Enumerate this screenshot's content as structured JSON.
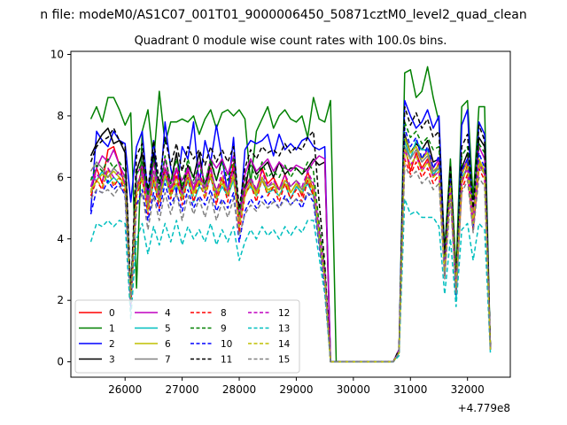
{
  "chart_data": {
    "type": "line",
    "suptitle": "n file: modeM0/AS1C07_001T01_9000006450_50871cztM0_level2_quad_clean",
    "title": "Quadrant 0 module wise count rates with 100.0s bins.",
    "xlabel": "",
    "ylabel": "",
    "x_offset_label": "+4.779e8",
    "xlim": [
      25050,
      32750
    ],
    "ylim": [
      -0.5,
      10.1
    ],
    "xticks": [
      26000,
      27000,
      28000,
      29000,
      30000,
      31000,
      32000
    ],
    "xtick_labels": [
      "26000",
      "27000",
      "28000",
      "29000",
      "30000",
      "31000",
      "32000"
    ],
    "yticks": [
      0,
      2,
      4,
      6,
      8,
      10
    ],
    "ytick_labels": [
      "0",
      "2",
      "4",
      "6",
      "8",
      "10"
    ],
    "grid": false,
    "legend_position": "lower-left",
    "legend_columns": 4,
    "x": [
      25400,
      25500,
      25600,
      25700,
      25800,
      25900,
      26000,
      26100,
      26200,
      26300,
      26400,
      26500,
      26600,
      26700,
      26800,
      26900,
      27000,
      27100,
      27200,
      27300,
      27400,
      27500,
      27600,
      27700,
      27800,
      27900,
      28000,
      28100,
      28200,
      28300,
      28400,
      28500,
      28600,
      28700,
      28800,
      28900,
      29000,
      29100,
      29200,
      29300,
      29400,
      29500,
      29600,
      29700,
      30700,
      30800,
      30900,
      31000,
      31100,
      31200,
      31300,
      31400,
      31500,
      31600,
      31700,
      31800,
      31900,
      32000,
      32100,
      32200,
      32300,
      32400
    ],
    "series": [
      {
        "name": "0",
        "color": "#ff0000",
        "dash": "solid",
        "values": [
          5.5,
          6.3,
          5.8,
          6.9,
          7.0,
          6.4,
          5.7,
          1.9,
          5.6,
          6.3,
          5.0,
          6.6,
          5.3,
          6.0,
          5.5,
          6.3,
          5.6,
          6.2,
          5.5,
          6.1,
          5.7,
          6.3,
          5.4,
          6.0,
          5.6,
          6.4,
          4.6,
          5.7,
          6.0,
          5.5,
          6.3,
          5.8,
          6.0,
          5.6,
          6.1,
          5.5,
          5.8,
          5.4,
          6.2,
          5.5,
          4.0,
          2.8,
          0.0,
          0.0,
          0.0,
          0.3,
          7.0,
          6.2,
          6.8,
          6.3,
          6.6,
          6.0,
          6.5,
          3.2,
          6.0,
          2.8,
          5.8,
          6.4,
          4.8,
          6.5,
          6.2,
          0.5
        ]
      },
      {
        "name": "1",
        "color": "#008000",
        "dash": "solid",
        "values": [
          7.9,
          8.3,
          7.8,
          8.6,
          8.6,
          8.2,
          7.7,
          8.1,
          2.4,
          7.5,
          8.2,
          6.5,
          8.8,
          7.1,
          7.8,
          7.8,
          7.9,
          7.8,
          8.0,
          7.4,
          7.9,
          8.2,
          7.6,
          8.1,
          8.2,
          8.0,
          8.2,
          7.9,
          5.8,
          7.5,
          7.9,
          8.3,
          7.6,
          8.0,
          8.2,
          7.9,
          7.8,
          8.0,
          7.3,
          8.6,
          7.9,
          7.8,
          8.5,
          0.0,
          0.0,
          0.3,
          9.4,
          9.5,
          8.6,
          8.8,
          9.6,
          8.6,
          7.8,
          3.6,
          6.6,
          2.9,
          8.3,
          8.5,
          5.3,
          8.3,
          8.3,
          0.4
        ]
      },
      {
        "name": "2",
        "color": "#0000ff",
        "dash": "solid",
        "values": [
          4.9,
          7.5,
          7.2,
          7.0,
          7.5,
          7.2,
          7.1,
          5.2,
          7.0,
          7.5,
          5.4,
          7.2,
          5.2,
          7.8,
          6.3,
          5.5,
          7.0,
          6.6,
          7.8,
          5.7,
          7.2,
          6.5,
          7.7,
          6.6,
          5.5,
          7.3,
          4.4,
          6.9,
          7.2,
          7.1,
          7.2,
          7.4,
          6.7,
          7.4,
          6.9,
          7.1,
          6.9,
          7.2,
          7.3,
          7.0,
          6.9,
          7.0,
          0.0,
          0.0,
          0.0,
          0.4,
          8.5,
          8.0,
          7.6,
          7.8,
          8.2,
          7.6,
          8.0,
          3.3,
          5.9,
          2.2,
          7.7,
          8.2,
          4.3,
          7.8,
          7.4,
          0.4
        ]
      },
      {
        "name": "3",
        "color": "#000000",
        "dash": "solid",
        "values": [
          6.7,
          7.1,
          7.4,
          7.6,
          7.1,
          7.2,
          6.8,
          2.0,
          6.2,
          6.8,
          5.1,
          6.8,
          5.4,
          6.3,
          5.8,
          6.8,
          5.5,
          6.4,
          6.0,
          6.8,
          5.6,
          6.5,
          5.9,
          6.6,
          6.1,
          6.2,
          4.5,
          5.6,
          6.6,
          6.1,
          6.3,
          6.5,
          6.0,
          6.5,
          6.1,
          6.3,
          6.3,
          6.1,
          6.3,
          6.6,
          6.4,
          6.5,
          0.0,
          0.0,
          0.0,
          0.4,
          7.4,
          6.8,
          7.1,
          6.9,
          7.2,
          6.5,
          6.6,
          2.8,
          6.3,
          2.4,
          6.3,
          6.8,
          4.5,
          7.3,
          7.0,
          0.5
        ]
      },
      {
        "name": "4",
        "color": "#bf00bf",
        "dash": "solid",
        "values": [
          5.7,
          6.3,
          6.7,
          6.5,
          6.9,
          6.4,
          6.0,
          2.2,
          6.1,
          6.4,
          5.3,
          6.5,
          5.5,
          6.6,
          5.8,
          6.3,
          5.9,
          6.3,
          5.6,
          6.5,
          5.8,
          6.6,
          6.3,
          6.6,
          6.1,
          6.7,
          4.7,
          6.1,
          6.6,
          6.2,
          6.4,
          6.6,
          6.2,
          6.5,
          6.3,
          6.2,
          6.4,
          6.3,
          6.2,
          6.5,
          6.7,
          6.6,
          0.0,
          0.0,
          0.0,
          0.4,
          7.2,
          6.8,
          7.0,
          6.6,
          6.9,
          6.3,
          6.6,
          3.0,
          6.0,
          2.6,
          6.2,
          6.6,
          4.8,
          7.0,
          6.6,
          0.4
        ]
      },
      {
        "name": "5",
        "color": "#00bfbf",
        "dash": "solid",
        "values": [
          6.0,
          5.9,
          6.2,
          5.8,
          6.0,
          5.8,
          5.7,
          2.4,
          5.6,
          5.9,
          5.0,
          5.8,
          5.2,
          6.0,
          5.4,
          5.8,
          5.3,
          5.9,
          5.2,
          5.7,
          5.5,
          6.0,
          5.3,
          5.7,
          5.4,
          5.9,
          4.6,
          5.5,
          5.7,
          5.4,
          5.9,
          5.5,
          5.6,
          5.4,
          5.8,
          5.3,
          5.7,
          5.5,
          5.8,
          5.4,
          3.9,
          2.7,
          0.0,
          0.0,
          0.0,
          0.3,
          7.2,
          6.6,
          7.2,
          6.9,
          6.9,
          6.1,
          6.3,
          3.0,
          5.8,
          2.0,
          6.0,
          6.3,
          4.5,
          6.4,
          6.1,
          0.4
        ]
      },
      {
        "name": "6",
        "color": "#bfbf00",
        "dash": "solid",
        "values": [
          5.6,
          5.9,
          6.1,
          6.0,
          6.2,
          6.0,
          5.8,
          2.1,
          5.7,
          5.9,
          5.1,
          6.0,
          5.3,
          6.1,
          5.6,
          5.8,
          5.4,
          6.0,
          5.5,
          5.9,
          5.6,
          6.0,
          5.5,
          5.8,
          5.5,
          6.0,
          4.6,
          5.5,
          5.8,
          5.5,
          5.9,
          5.6,
          5.7,
          5.6,
          5.8,
          5.5,
          5.8,
          5.6,
          5.9,
          5.6,
          4.2,
          2.9,
          0.0,
          0.0,
          0.0,
          0.3,
          7.3,
          6.8,
          7.0,
          6.6,
          6.8,
          6.2,
          6.4,
          3.1,
          5.9,
          2.3,
          6.1,
          6.5,
          4.6,
          6.6,
          6.2,
          0.4
        ]
      },
      {
        "name": "7",
        "color": "#808080",
        "dash": "solid",
        "values": [
          6.2,
          6.5,
          6.3,
          6.0,
          6.3,
          6.1,
          6.0,
          1.9,
          5.8,
          6.1,
          5.2,
          6.2,
          5.5,
          6.1,
          5.7,
          6.0,
          5.5,
          6.1,
          5.8,
          6.0,
          5.7,
          6.1,
          5.6,
          5.9,
          5.6,
          6.1,
          4.4,
          5.6,
          5.9,
          5.6,
          6.0,
          5.7,
          5.8,
          5.6,
          5.9,
          5.7,
          5.9,
          5.6,
          6.0,
          5.8,
          4.1,
          2.6,
          0.0,
          0.0,
          0.0,
          0.3,
          7.0,
          6.6,
          6.9,
          6.5,
          6.7,
          6.2,
          6.3,
          3.0,
          5.7,
          2.2,
          5.9,
          6.3,
          4.4,
          6.4,
          6.1,
          0.4
        ]
      },
      {
        "name": "8",
        "color": "#ff0000",
        "dash": "dashed",
        "values": [
          5.4,
          5.9,
          5.6,
          6.3,
          5.7,
          6.0,
          5.5,
          1.8,
          5.4,
          6.0,
          4.8,
          5.9,
          5.0,
          6.3,
          5.3,
          6.1,
          5.1,
          6.0,
          5.2,
          5.9,
          5.3,
          6.1,
          5.1,
          6.0,
          5.2,
          6.5,
          4.2,
          5.4,
          5.8,
          5.2,
          6.0,
          5.4,
          5.7,
          5.2,
          5.8,
          5.3,
          5.6,
          5.2,
          5.9,
          5.4,
          3.9,
          2.5,
          0.0,
          0.0,
          0.0,
          0.3,
          6.6,
          6.1,
          6.5,
          6.0,
          6.3,
          5.8,
          6.1,
          2.8,
          5.6,
          2.3,
          5.6,
          6.1,
          4.3,
          6.3,
          5.9,
          0.4
        ]
      },
      {
        "name": "9",
        "color": "#008000",
        "dash": "dashed",
        "values": [
          5.9,
          6.4,
          6.2,
          6.6,
          6.3,
          6.5,
          6.2,
          2.3,
          6.1,
          6.5,
          5.4,
          6.6,
          5.6,
          6.7,
          5.8,
          6.6,
          5.7,
          6.6,
          5.9,
          6.4,
          5.8,
          6.6,
          5.9,
          6.5,
          5.9,
          6.6,
          4.8,
          5.9,
          6.4,
          5.9,
          6.5,
          6.0,
          6.2,
          6.0,
          6.4,
          6.0,
          6.3,
          6.1,
          6.5,
          6.2,
          4.5,
          3.0,
          0.0,
          0.0,
          0.0,
          0.3,
          7.8,
          7.3,
          7.5,
          7.1,
          7.3,
          6.9,
          7.0,
          3.3,
          6.3,
          2.7,
          6.7,
          7.0,
          5.0,
          7.1,
          6.8,
          0.5
        ]
      },
      {
        "name": "10",
        "color": "#0000ff",
        "dash": "dashed",
        "values": [
          4.8,
          5.6,
          5.5,
          5.9,
          5.6,
          5.8,
          5.4,
          1.7,
          5.1,
          5.6,
          4.6,
          5.5,
          4.9,
          5.8,
          5.1,
          5.5,
          4.9,
          5.6,
          5.0,
          5.4,
          5.1,
          5.6,
          4.9,
          5.3,
          5.0,
          5.5,
          3.9,
          4.9,
          5.3,
          5.0,
          5.4,
          5.1,
          5.3,
          5.0,
          5.4,
          5.1,
          5.3,
          5.0,
          5.5,
          5.2,
          3.8,
          2.4,
          0.0,
          0.0,
          0.0,
          0.3,
          7.6,
          7.0,
          7.3,
          6.6,
          7.0,
          6.3,
          6.7,
          2.9,
          6.0,
          2.2,
          6.2,
          6.6,
          4.4,
          6.8,
          6.3,
          0.4
        ]
      },
      {
        "name": "11",
        "color": "#000000",
        "dash": "dashed",
        "values": [
          6.5,
          7.0,
          7.2,
          7.3,
          7.6,
          7.2,
          7.0,
          2.2,
          6.7,
          7.1,
          5.6,
          7.2,
          5.8,
          7.3,
          6.4,
          7.1,
          6.2,
          7.0,
          6.6,
          6.9,
          6.4,
          7.0,
          6.5,
          6.9,
          6.5,
          7.0,
          5.0,
          6.3,
          6.9,
          6.6,
          7.0,
          6.8,
          6.9,
          6.7,
          7.1,
          6.8,
          7.0,
          6.9,
          7.3,
          7.5,
          5.2,
          3.2,
          0.0,
          0.0,
          0.0,
          0.4,
          8.3,
          7.7,
          8.1,
          7.6,
          7.9,
          7.3,
          7.5,
          3.5,
          6.4,
          2.6,
          7.0,
          7.4,
          5.0,
          7.7,
          7.2,
          0.5
        ]
      },
      {
        "name": "12",
        "color": "#bf00bf",
        "dash": "dashed",
        "values": [
          5.7,
          6.1,
          5.9,
          6.3,
          6.0,
          6.2,
          5.8,
          2.0,
          5.6,
          6.2,
          5.1,
          6.2,
          5.3,
          6.3,
          5.6,
          6.2,
          5.4,
          6.3,
          5.6,
          6.1,
          5.5,
          6.3,
          5.5,
          6.2,
          5.5,
          6.3,
          4.5,
          5.6,
          6.0,
          5.6,
          6.2,
          5.7,
          5.9,
          5.6,
          6.1,
          5.7,
          5.9,
          5.7,
          6.2,
          5.8,
          4.3,
          2.8,
          0.0,
          0.0,
          0.0,
          0.3,
          6.9,
          6.4,
          6.7,
          6.2,
          6.5,
          6.0,
          6.2,
          2.9,
          5.7,
          2.4,
          5.9,
          6.3,
          4.5,
          6.5,
          6.1,
          0.4
        ]
      },
      {
        "name": "13",
        "color": "#00bfbf",
        "dash": "dashed",
        "values": [
          3.9,
          4.5,
          4.4,
          4.6,
          4.4,
          4.6,
          4.5,
          1.4,
          4.0,
          4.5,
          3.5,
          4.4,
          3.8,
          4.5,
          3.9,
          4.6,
          3.8,
          4.4,
          4.0,
          4.3,
          3.9,
          4.5,
          3.8,
          4.3,
          3.9,
          4.4,
          3.3,
          3.9,
          4.3,
          4.0,
          4.4,
          4.1,
          4.3,
          4.0,
          4.4,
          4.1,
          4.4,
          4.2,
          4.6,
          4.6,
          3.4,
          2.2,
          0.0,
          0.0,
          0.0,
          0.2,
          5.3,
          4.8,
          4.9,
          4.7,
          4.7,
          4.7,
          4.4,
          2.2,
          4.0,
          1.8,
          4.3,
          4.5,
          3.3,
          4.5,
          4.3,
          0.3
        ]
      },
      {
        "name": "14",
        "color": "#bfbf00",
        "dash": "dashed",
        "values": [
          5.5,
          5.9,
          5.7,
          6.2,
          5.8,
          6.0,
          5.7,
          2.0,
          5.5,
          6.0,
          4.9,
          6.0,
          5.2,
          6.1,
          5.4,
          6.0,
          5.3,
          6.1,
          5.4,
          5.9,
          5.4,
          6.1,
          5.3,
          6.0,
          5.4,
          6.1,
          4.4,
          5.4,
          5.8,
          5.4,
          6.0,
          5.5,
          5.8,
          5.4,
          5.9,
          5.5,
          5.8,
          5.5,
          6.0,
          5.7,
          4.1,
          2.7,
          0.0,
          0.0,
          0.0,
          0.3,
          6.9,
          6.4,
          6.7,
          6.2,
          6.5,
          6.0,
          6.2,
          2.9,
          5.7,
          2.4,
          5.9,
          6.3,
          4.5,
          6.5,
          6.1,
          0.4
        ]
      },
      {
        "name": "15",
        "color": "#808080",
        "dash": "dashed",
        "values": [
          5.3,
          5.6,
          5.5,
          5.6,
          5.4,
          5.7,
          5.5,
          1.9,
          5.0,
          5.5,
          4.3,
          5.4,
          4.6,
          5.5,
          4.8,
          5.5,
          4.6,
          5.4,
          4.8,
          5.3,
          4.7,
          5.4,
          4.6,
          5.2,
          4.7,
          5.3,
          4.1,
          4.8,
          5.1,
          4.9,
          5.2,
          5.0,
          5.2,
          5.0,
          5.3,
          5.1,
          5.3,
          5.2,
          5.5,
          5.4,
          3.9,
          2.5,
          0.0,
          0.0,
          0.0,
          0.3,
          6.4,
          6.0,
          6.2,
          5.8,
          6.0,
          5.6,
          5.8,
          2.7,
          5.3,
          2.2,
          5.5,
          5.9,
          4.2,
          6.0,
          5.7,
          0.4
        ]
      }
    ]
  }
}
